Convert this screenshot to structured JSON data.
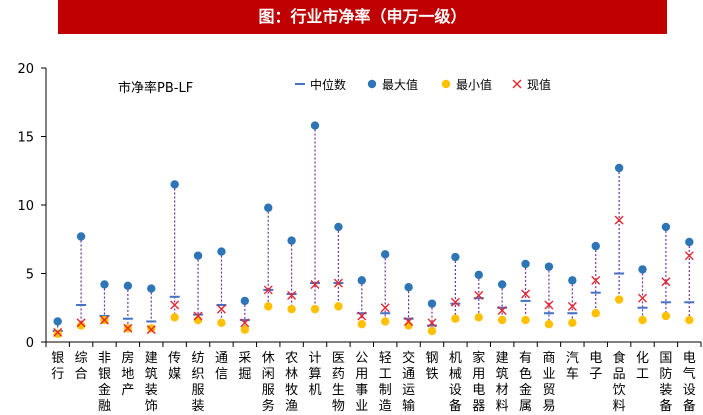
{
  "title": "图：行业市净率（申万一级）",
  "chart_data": {
    "type": "scatter",
    "subtitle": "市净率PB-LF",
    "ylim": [
      0,
      20
    ],
    "yticks": [
      "0",
      "5",
      "10",
      "15",
      "20"
    ],
    "grid": false,
    "legend_placement": "top-right",
    "categories": [
      "银行",
      "综合",
      "非银金融",
      "房地产",
      "建筑装饰",
      "传媒",
      "纺织服装",
      "通信",
      "采掘",
      "休闲服务",
      "农林牧渔",
      "计算机",
      "医药生物",
      "公用事业",
      "轻工制造",
      "交通运输",
      "钢铁",
      "机械设备",
      "家用电器",
      "建筑材料",
      "有色金属",
      "商业贸易",
      "汽车",
      "电子",
      "食品饮料",
      "化工",
      "国防装备",
      "电气设备"
    ],
    "series": [
      {
        "name": "中位数",
        "marker": "dash",
        "color": "#4472c4",
        "values": [
          0.8,
          2.7,
          1.9,
          1.7,
          1.5,
          3.3,
          2.0,
          2.7,
          1.6,
          3.8,
          3.5,
          4.3,
          4.3,
          2.1,
          2.1,
          1.7,
          1.2,
          2.8,
          3.2,
          2.5,
          3.0,
          2.1,
          2.1,
          3.6,
          5.0,
          2.5,
          2.9,
          2.9
        ]
      },
      {
        "name": "最大值",
        "marker": "circle",
        "color": "#2e75b6",
        "values": [
          1.5,
          7.7,
          4.2,
          4.1,
          3.9,
          11.5,
          6.3,
          6.6,
          3.0,
          9.8,
          7.4,
          15.8,
          8.4,
          4.5,
          6.4,
          4.0,
          2.8,
          6.2,
          4.9,
          4.2,
          5.7,
          5.5,
          4.5,
          7.0,
          12.7,
          5.3,
          8.4,
          7.3
        ]
      },
      {
        "name": "最小值",
        "marker": "circle",
        "color": "#ffc000",
        "values": [
          0.6,
          1.2,
          1.6,
          1.0,
          1.0,
          1.8,
          1.6,
          1.4,
          0.9,
          2.6,
          2.4,
          2.4,
          2.6,
          1.3,
          1.5,
          1.2,
          0.8,
          1.7,
          1.8,
          1.6,
          1.6,
          1.3,
          1.4,
          2.1,
          3.1,
          1.6,
          1.9,
          1.6
        ]
      },
      {
        "name": "现值",
        "marker": "x",
        "color": "#e8262e",
        "values": [
          0.7,
          1.4,
          1.6,
          1.0,
          0.9,
          2.7,
          1.9,
          2.4,
          1.4,
          3.8,
          3.4,
          4.2,
          4.3,
          1.9,
          2.5,
          1.5,
          1.4,
          2.9,
          3.4,
          2.3,
          3.5,
          2.7,
          2.6,
          4.5,
          8.9,
          3.2,
          4.4,
          6.3
        ]
      }
    ]
  }
}
